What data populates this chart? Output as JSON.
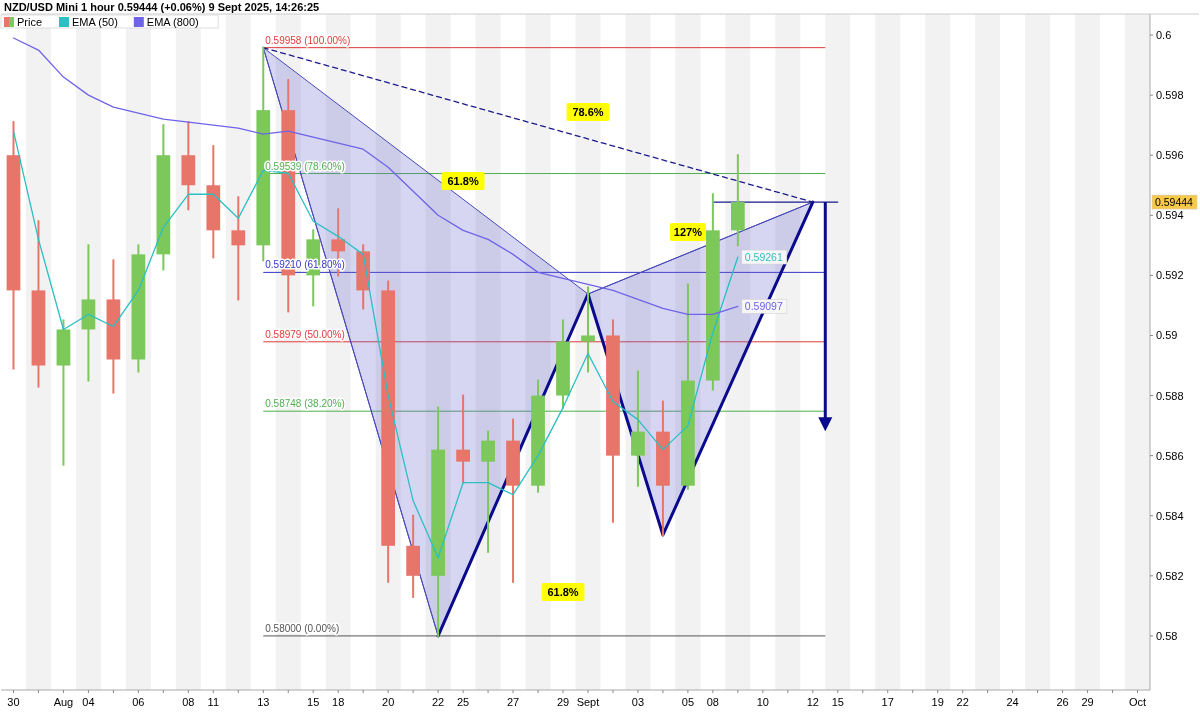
{
  "chart_data": {
    "type": "candlestick",
    "title": "NZD/USD Mini 1 hour 0.59444 (+0.06%) 9 Sept 2025, 14:26:25",
    "legend": "top left",
    "categories": [
      "30",
      null,
      "Aug",
      "04",
      null,
      "06",
      null,
      "08",
      "11",
      null,
      "13",
      null,
      "15",
      "18",
      null,
      "20",
      null,
      "22",
      "25",
      null,
      "27",
      null,
      "29",
      "Sept",
      null,
      "03",
      null,
      "05",
      "08",
      null,
      "10",
      null,
      "12",
      "15",
      null,
      "17",
      null,
      "19",
      "22",
      null,
      "24",
      null,
      "26",
      "29",
      null,
      "Oct"
    ],
    "ylim": [
      0.5782,
      0.6007
    ],
    "yticks": [
      0.58,
      0.582,
      0.584,
      0.586,
      0.588,
      0.59,
      0.592,
      0.594,
      0.596,
      0.598,
      0.6
    ],
    "series": [
      {
        "name": "Price",
        "ohlc": [
          [
            0.596,
            0.5971,
            0.5889,
            0.5915
          ],
          [
            0.5915,
            0.5938,
            0.5883,
            0.589
          ],
          [
            0.589,
            0.5905,
            0.5857,
            0.5902
          ],
          [
            0.5902,
            0.593,
            0.5885,
            0.5912
          ],
          [
            0.5912,
            0.5925,
            0.5881,
            0.5892
          ],
          [
            0.5892,
            0.593,
            0.5888,
            0.5927
          ],
          [
            0.5927,
            0.597,
            0.5922,
            0.596
          ],
          [
            0.596,
            0.5971,
            0.5942,
            0.595
          ],
          [
            0.595,
            0.5963,
            0.5926,
            0.5935
          ],
          [
            0.5935,
            0.5946,
            0.5912,
            0.593
          ],
          [
            0.593,
            0.59958,
            0.5925,
            0.5975
          ],
          [
            0.5975,
            0.5985,
            0.5908,
            0.592
          ],
          [
            0.592,
            0.5935,
            0.591,
            0.5932
          ],
          [
            0.5932,
            0.5942,
            0.592,
            0.5928
          ],
          [
            0.5928,
            0.593,
            0.5909,
            0.5915
          ],
          [
            0.5915,
            0.5918,
            0.5818,
            0.583
          ],
          [
            0.583,
            0.584,
            0.5813,
            0.582
          ],
          [
            0.582,
            0.5876,
            0.58,
            0.5862
          ],
          [
            0.5862,
            0.588,
            0.5851,
            0.5858
          ],
          [
            0.5858,
            0.5868,
            0.5828,
            0.5865
          ],
          [
            0.5865,
            0.5872,
            0.5818,
            0.585
          ],
          [
            0.585,
            0.5885,
            0.5848,
            0.588
          ],
          [
            0.588,
            0.5905,
            0.5876,
            0.5898
          ],
          [
            0.5898,
            0.5916,
            0.5888,
            0.59
          ],
          [
            0.59,
            0.5905,
            0.5838,
            0.586
          ],
          [
            0.586,
            0.5888,
            0.585,
            0.5868
          ],
          [
            0.5868,
            0.5878,
            0.58336,
            0.585
          ],
          [
            0.585,
            0.5917,
            0.5849,
            0.5885
          ],
          [
            0.5885,
            0.5947,
            0.5882,
            0.5935
          ],
          [
            0.5935,
            0.596,
            0.593,
            0.59444
          ],
          null,
          null,
          null,
          null,
          null,
          null,
          null,
          null,
          null,
          null,
          null,
          null,
          null,
          null,
          null,
          null
        ],
        "colors": [
          "#e8756a",
          "#e8756a",
          "#7cc85a",
          "#7cc85a",
          "#e8756a",
          "#7cc85a",
          "#7cc85a",
          "#e8756a",
          "#e8756a",
          "#e8756a",
          "#7cc85a",
          "#e8756a",
          "#7cc85a",
          "#e8756a",
          "#e8756a",
          "#e8756a",
          "#e8756a",
          "#7cc85a",
          "#e8756a",
          "#7cc85a",
          "#e8756a",
          "#7cc85a",
          "#7cc85a",
          "#7cc85a",
          "#e8756a",
          "#7cc85a",
          "#e8756a",
          "#7cc85a",
          "#7cc85a",
          "#7cc85a",
          null,
          null,
          null,
          null,
          null,
          null,
          null,
          null,
          null,
          null,
          null,
          null,
          null,
          null,
          null,
          null
        ],
        "value_labels": [
          null,
          null,
          null,
          null,
          null,
          null,
          null,
          null,
          null,
          null,
          null,
          null,
          null,
          null,
          null,
          null,
          null,
          null,
          null,
          null,
          null,
          null,
          null,
          null,
          null,
          null,
          null,
          null,
          null,
          "0.59444",
          null,
          null,
          null,
          null,
          null,
          null,
          null,
          null,
          null,
          null,
          null,
          null,
          null,
          null,
          null,
          null
        ]
      },
      {
        "type": "line",
        "name": "EMA (50)",
        "color": "#2bbfc4",
        "values": [
          0.5968,
          0.5932,
          0.5902,
          0.5907,
          0.5903,
          0.5915,
          0.5936,
          0.5947,
          0.5947,
          0.5939,
          0.5955,
          0.5954,
          0.5938,
          0.5933,
          0.5927,
          0.588,
          0.5845,
          0.5826,
          0.5851,
          0.5851,
          0.5847,
          0.586,
          0.5876,
          0.5894,
          0.5878,
          0.5872,
          0.5862,
          0.587,
          0.5901,
          0.59261,
          null,
          null,
          null,
          null,
          null,
          null,
          null,
          null,
          null,
          null,
          null,
          null,
          null,
          null,
          null,
          null
        ],
        "value_labels": [
          null,
          null,
          null,
          null,
          null,
          null,
          null,
          null,
          null,
          null,
          null,
          null,
          null,
          null,
          null,
          null,
          null,
          null,
          null,
          null,
          null,
          null,
          null,
          null,
          null,
          null,
          null,
          null,
          null,
          "0.59261",
          null,
          null,
          null,
          null,
          null,
          null,
          null,
          null,
          null,
          null,
          null,
          null,
          null,
          null,
          null,
          null
        ]
      },
      {
        "type": "line",
        "name": "EMA (800)",
        "color": "#6f63e8",
        "values": [
          0.5999,
          0.5995,
          0.5986,
          0.598,
          0.5976,
          0.5974,
          0.5972,
          0.5971,
          0.597,
          0.5969,
          0.5967,
          0.5968,
          0.5966,
          0.5964,
          0.5962,
          0.5956,
          0.5948,
          0.594,
          0.5935,
          0.5932,
          0.5927,
          0.5921,
          0.5919,
          0.5917,
          0.5915,
          0.5912,
          0.5909,
          0.5907,
          0.5907,
          0.59097,
          null,
          null,
          null,
          null,
          null,
          null,
          null,
          null,
          null,
          null,
          null,
          null,
          null,
          null,
          null,
          null
        ],
        "value_labels": [
          null,
          null,
          null,
          null,
          null,
          null,
          null,
          null,
          null,
          null,
          null,
          null,
          null,
          null,
          null,
          null,
          null,
          null,
          null,
          null,
          null,
          null,
          null,
          null,
          null,
          null,
          null,
          null,
          null,
          "0.59097",
          null,
          null,
          null,
          null,
          null,
          null,
          null,
          null,
          null,
          null,
          null,
          null,
          null,
          null,
          null,
          null
        ]
      },
      {
        "type": "line",
        "color": "#4a4ab8",
        "values": [
          null,
          null,
          null,
          null,
          null,
          null,
          null,
          null,
          null,
          null,
          0.59958,
          null,
          null,
          null,
          null,
          null,
          null,
          0.58,
          null,
          null,
          null,
          null,
          null,
          0.59138,
          null,
          null,
          null,
          null,
          null,
          null,
          null,
          null,
          0.59444,
          null,
          null,
          null,
          null,
          null,
          null,
          null,
          null,
          null,
          null,
          null,
          null,
          null
        ]
      },
      {
        "type": "line",
        "color": "#0a0a8c",
        "values": [
          null,
          null,
          null,
          null,
          null,
          null,
          null,
          null,
          null,
          null,
          null,
          null,
          null,
          null,
          null,
          null,
          null,
          0.58,
          null,
          null,
          null,
          null,
          null,
          0.59138,
          null,
          null,
          0.58336,
          null,
          null,
          null,
          null,
          null,
          0.59444,
          null,
          null,
          null,
          null,
          null,
          null,
          null,
          null,
          null,
          null,
          null,
          null,
          null
        ]
      },
      {
        "type": "line",
        "color": "#1a1a8c",
        "line_style": "dashed",
        "values": [
          null,
          null,
          null,
          null,
          null,
          null,
          null,
          null,
          null,
          null,
          0.59958,
          null,
          null,
          null,
          null,
          null,
          null,
          null,
          null,
          null,
          null,
          null,
          null,
          null,
          null,
          null,
          null,
          null,
          null,
          null,
          null,
          null,
          0.59444,
          null,
          null,
          null,
          null,
          null,
          null,
          null,
          null,
          null,
          null,
          null,
          null,
          null
        ]
      },
      {
        "type": "line",
        "color": "#1a1a8c",
        "values": [
          null,
          null,
          null,
          null,
          null,
          null,
          null,
          null,
          null,
          null,
          null,
          null,
          null,
          null,
          null,
          null,
          null,
          null,
          null,
          null,
          null,
          null,
          null,
          null,
          null,
          null,
          null,
          null,
          0.59444,
          null,
          null,
          null,
          null,
          0.59444,
          null,
          null,
          null,
          null,
          null,
          null,
          null,
          null,
          null,
          null,
          null,
          null
        ]
      }
    ],
    "ref_lines": [
      {
        "axis": "y",
        "value": 0.59958,
        "label": "0.59958 (100.00%)",
        "color": "#e03a3a"
      },
      {
        "axis": "y",
        "value": 0.59539,
        "label": "0.59539 (78.60%)",
        "color": "#4fae4f"
      },
      {
        "axis": "y",
        "value": 0.5921,
        "label": "0.59210 (61.80%)",
        "color": "#3434c8"
      },
      {
        "axis": "y",
        "value": 0.58979,
        "label": "0.58979 (50.00%)",
        "color": "#e03a3a"
      },
      {
        "axis": "y",
        "value": 0.58748,
        "label": "0.58748 (38.20%)",
        "color": "#4fae4f"
      },
      {
        "axis": "y",
        "value": 0.58,
        "label": "0.58000 (0.00%)",
        "color": "#555555"
      }
    ],
    "annotations": [
      {
        "text": "78.6%",
        "x": "Sept",
        "y": 0.59744
      },
      {
        "text": "61.8%",
        "x": "25",
        "y": 0.59514
      },
      {
        "text": "127%",
        "x": "05",
        "y": 0.59344
      },
      {
        "text": "61.8%",
        "x": "29",
        "y": 0.58146
      }
    ]
  }
}
